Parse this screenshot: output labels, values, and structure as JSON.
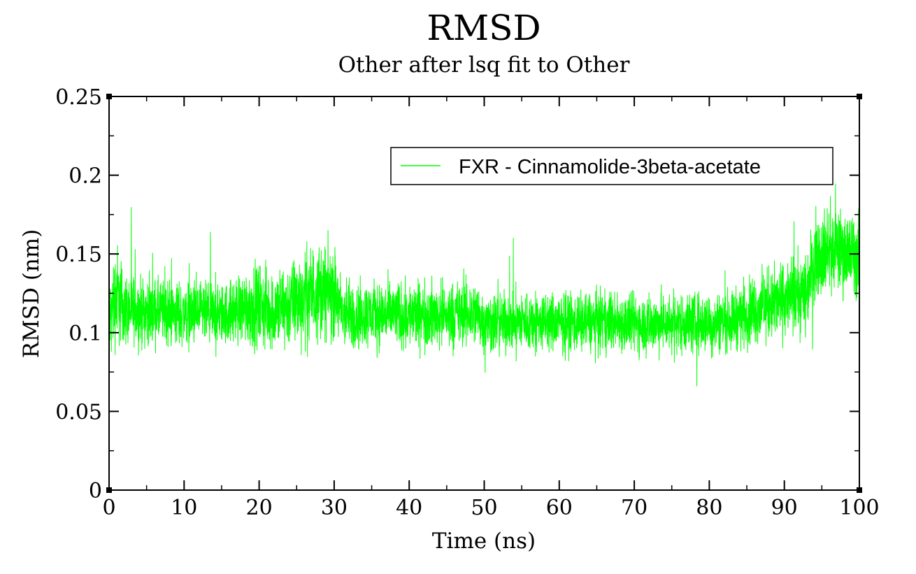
{
  "chart_data": {
    "type": "line",
    "title": "RMSD",
    "subtitle": "Other after lsq fit to Other",
    "xlabel": "Time (ns)",
    "ylabel": "RMSD (nm)",
    "xlim": [
      0,
      100
    ],
    "ylim": [
      0,
      0.25
    ],
    "x_ticks": [
      0,
      10,
      20,
      30,
      40,
      50,
      60,
      70,
      80,
      90,
      100
    ],
    "x_tick_labels": [
      "0",
      "10",
      "20",
      "30",
      "40",
      "50",
      "60",
      "70",
      "80",
      "90",
      "100"
    ],
    "y_ticks": [
      0,
      0.05,
      0.1,
      0.15,
      0.2,
      0.25
    ],
    "y_tick_labels": [
      "0",
      "0.05",
      "0.1",
      "0.15",
      "0.2",
      "0.25"
    ],
    "grid": false,
    "legend_position": "top-right",
    "series": [
      {
        "name": "FXR - Cinnamolide-3beta-acetate",
        "color": "#00ff00",
        "x": [
          0,
          1,
          2,
          5,
          10,
          15,
          18,
          20,
          22,
          25,
          27,
          28,
          30,
          31,
          33,
          35,
          40,
          45,
          48,
          49,
          50,
          55,
          60,
          65,
          70,
          75,
          80,
          83,
          85,
          88,
          90,
          92,
          93,
          94,
          95,
          97,
          100
        ],
        "y": [
          0.108,
          0.125,
          0.115,
          0.113,
          0.112,
          0.111,
          0.116,
          0.117,
          0.113,
          0.12,
          0.125,
          0.127,
          0.125,
          0.112,
          0.11,
          0.112,
          0.111,
          0.111,
          0.112,
          0.113,
          0.106,
          0.107,
          0.106,
          0.107,
          0.106,
          0.106,
          0.106,
          0.108,
          0.113,
          0.118,
          0.121,
          0.123,
          0.128,
          0.148,
          0.151,
          0.153,
          0.148
        ],
        "noise": [
          0.012,
          0.018,
          0.012,
          0.011,
          0.011,
          0.01,
          0.012,
          0.014,
          0.013,
          0.015,
          0.016,
          0.016,
          0.015,
          0.012,
          0.011,
          0.011,
          0.011,
          0.011,
          0.011,
          0.011,
          0.01,
          0.01,
          0.01,
          0.01,
          0.01,
          0.01,
          0.01,
          0.01,
          0.011,
          0.012,
          0.012,
          0.013,
          0.014,
          0.014,
          0.014,
          0.014,
          0.014
        ]
      }
    ]
  }
}
